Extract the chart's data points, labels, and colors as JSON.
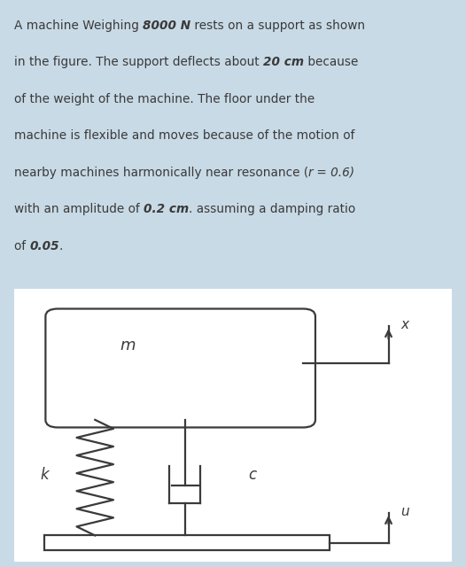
{
  "bg_color": "#c8dae6",
  "diagram_bg": "#e8f0f5",
  "panel_color": "#ffffff",
  "line_color": "#3a3a3a",
  "text_color": "#3a3a3a",
  "figsize": [
    5.26,
    6.4
  ],
  "dpi": 100,
  "lines": [
    [
      [
        "A machine Weighing ",
        false,
        false
      ],
      [
        "8000 N",
        true,
        true
      ],
      [
        " rests on a support as shown",
        false,
        false
      ]
    ],
    [
      [
        "in the figure. The support deflects about ",
        false,
        false
      ],
      [
        "20 cm",
        true,
        true
      ],
      [
        " because",
        false,
        false
      ]
    ],
    [
      [
        "of the weight of the machine. The floor under the",
        false,
        false
      ]
    ],
    [
      [
        "machine is flexible and moves because of the motion of",
        false,
        false
      ]
    ],
    [
      [
        "nearby machines harmonically near resonance (",
        false,
        false
      ],
      [
        "r",
        false,
        true
      ],
      [
        " = 0.6)",
        false,
        true
      ]
    ],
    [
      [
        "with an amplitude of ",
        false,
        false
      ],
      [
        "0.2 cm",
        true,
        true
      ],
      [
        ". assuming a damping ratio",
        false,
        false
      ]
    ],
    [
      [
        "of ",
        false,
        false
      ],
      [
        "0.05",
        true,
        true
      ],
      [
        ".",
        false,
        false
      ]
    ]
  ]
}
